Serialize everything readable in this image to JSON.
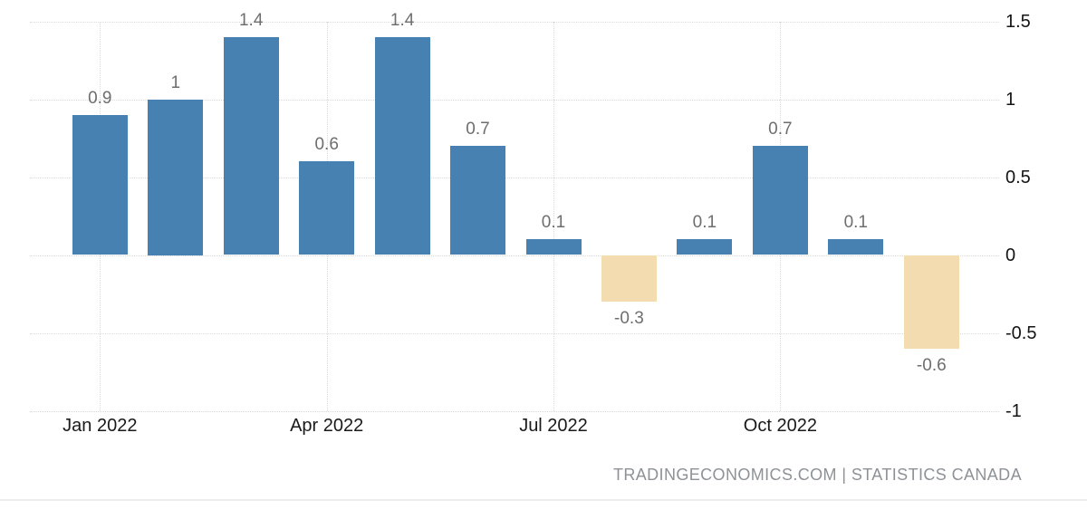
{
  "chart_data": {
    "type": "bar",
    "title": "",
    "xlabel": "",
    "ylabel": "",
    "categories": [
      "Jan 2022",
      "Feb 2022",
      "Mar 2022",
      "Apr 2022",
      "May 2022",
      "Jun 2022",
      "Jul 2022",
      "Aug 2022",
      "Sep 2022",
      "Oct 2022",
      "Nov 2022",
      "Dec 2022"
    ],
    "values": [
      0.9,
      1,
      1.4,
      0.6,
      1.4,
      0.7,
      0.1,
      -0.3,
      0.1,
      0.7,
      0.1,
      -0.6
    ],
    "bar_labels": [
      "0.9",
      "1",
      "1.4",
      "0.6",
      "1.4",
      "0.7",
      "0.1",
      "-0.3",
      "0.1",
      "0.7",
      "0.1",
      "-0.6"
    ],
    "x_tick_labels": [
      "Jan 2022",
      "Apr 2022",
      "Jul 2022",
      "Oct 2022"
    ],
    "x_tick_category_indexes": [
      0,
      3,
      6,
      9
    ],
    "y_ticks": [
      1.5,
      1,
      0.5,
      0,
      -0.5,
      -1
    ],
    "y_tick_labels": [
      "1.5",
      "1",
      "0.5",
      "0",
      "-0.5",
      "-1"
    ],
    "ylim": [
      -1,
      1.5
    ],
    "grid": true,
    "legend_position": "none",
    "colors": {
      "positive_bar": "#4681B2",
      "negative_bar": "#F3DDB0",
      "value_label": "#6E6E6E",
      "axis_label": "#1A1A1A",
      "gridline": "#DADADA"
    }
  },
  "footer": {
    "attribution": "TRADINGECONOMICS.COM | STATISTICS CANADA"
  }
}
